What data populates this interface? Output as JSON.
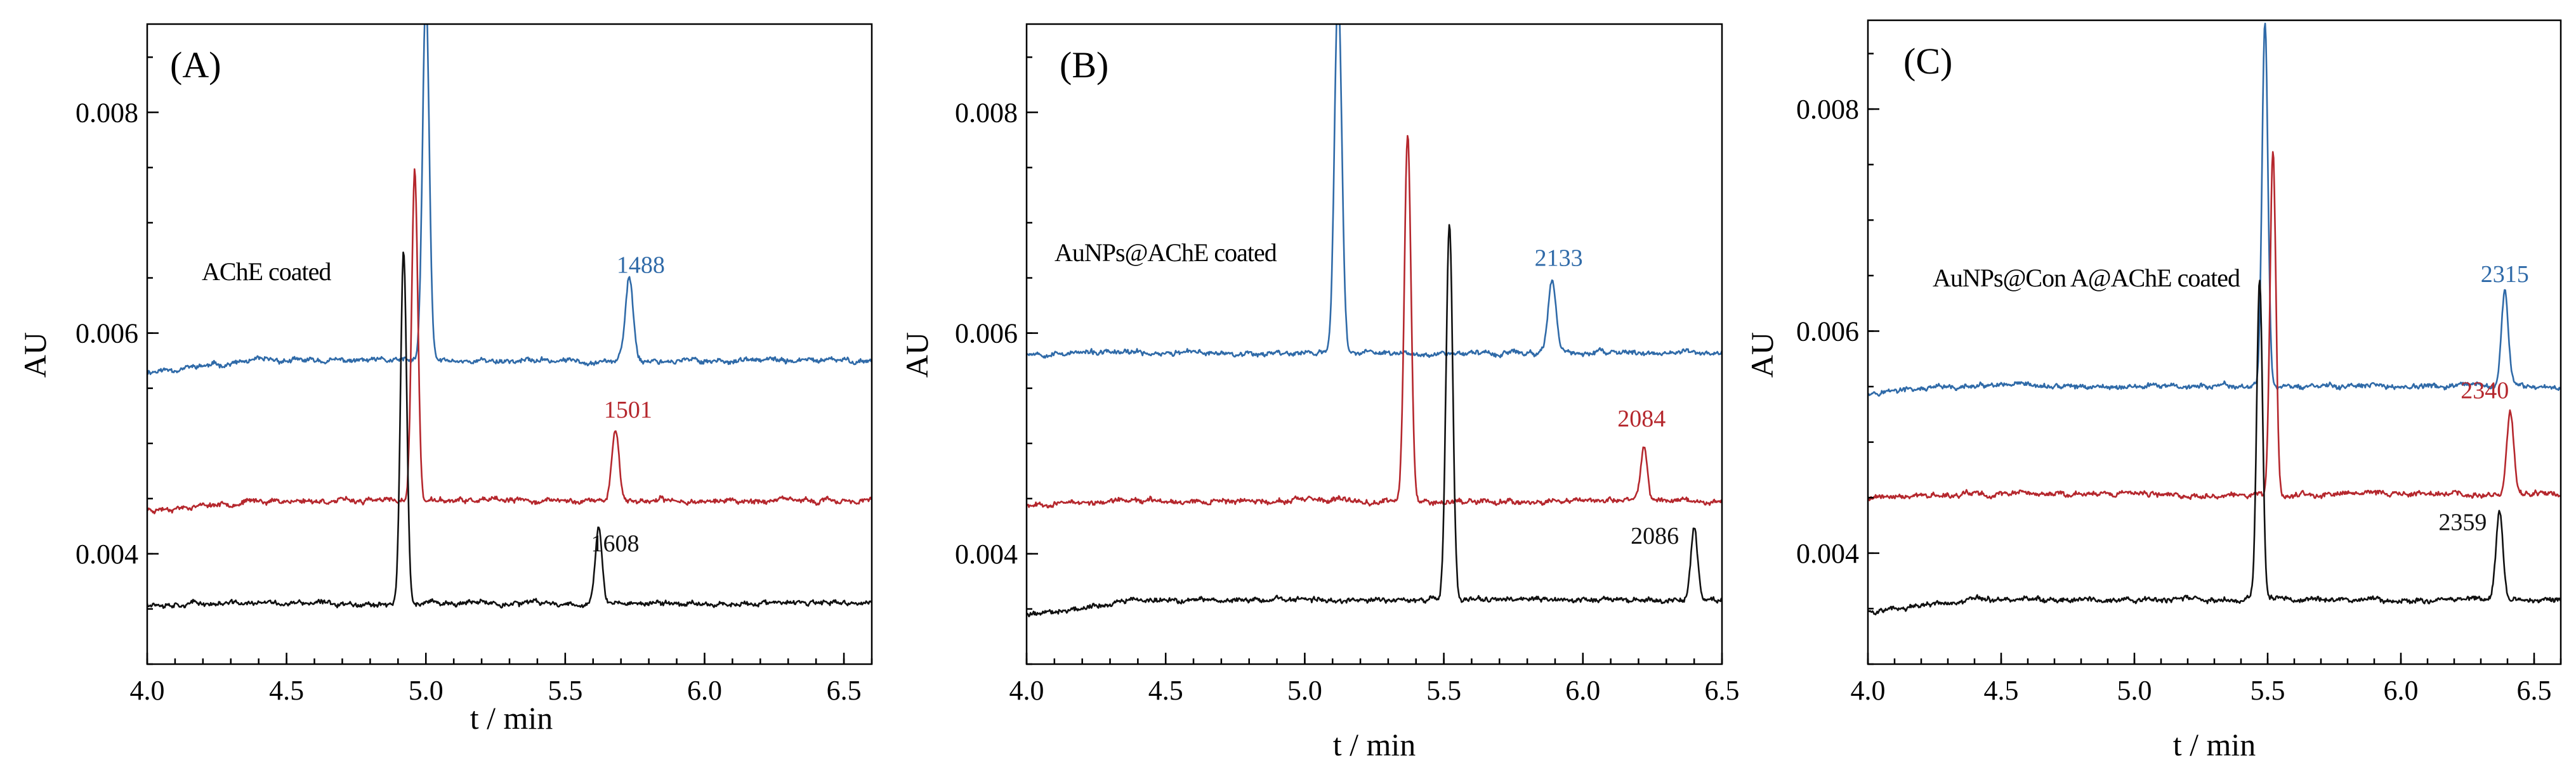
{
  "colors": {
    "blue": "#2f6aa8",
    "red": "#b5272d",
    "black": "#111111"
  },
  "chart_data": [
    {
      "type": "line",
      "panel_label": "(A)",
      "annotation": "AChE coated",
      "xlabel": "t / min",
      "ylabel": "AU",
      "xlim": [
        4.0,
        6.6
      ],
      "ylim": [
        0.003,
        0.0088
      ],
      "xticks": [
        "4.0",
        "4.5",
        "5.0",
        "5.5",
        "6.0",
        "6.5"
      ],
      "yticks": [
        "0.004",
        "0.006",
        "0.008"
      ],
      "series": [
        {
          "color": "#2f6aa8",
          "baseline": 0.00575,
          "start": 0.00565,
          "seed": 11,
          "peaks": [
            {
              "x": 5.0,
              "height": 0.0033,
              "width": 0.012
            },
            {
              "x": 5.73,
              "height": 0.00075,
              "width": 0.014
            }
          ],
          "peak_label": {
            "x": 5.73,
            "text": "1488"
          }
        },
        {
          "color": "#b5272d",
          "baseline": 0.00448,
          "start": 0.0044,
          "seed": 23,
          "peaks": [
            {
              "x": 4.96,
              "height": 0.003,
              "width": 0.011
            },
            {
              "x": 5.68,
              "height": 0.00065,
              "width": 0.013
            }
          ],
          "peak_label": {
            "x": 5.68,
            "text": "1501"
          }
        },
        {
          "color": "#111111",
          "baseline": 0.00355,
          "start": 0.00355,
          "seed": 37,
          "peaks": [
            {
              "x": 4.92,
              "height": 0.0032,
              "width": 0.011
            },
            {
              "x": 5.62,
              "height": 0.00068,
              "width": 0.012
            }
          ],
          "peak_label": {
            "x": 5.62,
            "text": "1608"
          }
        }
      ]
    },
    {
      "type": "line",
      "panel_label": "(B)",
      "annotation": "AuNPs@AChE coated",
      "xlabel": "t / min",
      "ylabel": "AU",
      "xlim": [
        4.0,
        6.5
      ],
      "ylim": [
        0.003,
        0.0088
      ],
      "xticks": [
        "4.0",
        "4.5",
        "5.0",
        "5.5",
        "6.0",
        "6.5"
      ],
      "yticks": [
        "0.004",
        "0.006",
        "0.008"
      ],
      "series": [
        {
          "color": "#2f6aa8",
          "baseline": 0.00582,
          "start": 0.00582,
          "seed": 53,
          "peaks": [
            {
              "x": 5.12,
              "height": 0.0033,
              "width": 0.013
            },
            {
              "x": 5.89,
              "height": 0.00065,
              "width": 0.014
            }
          ],
          "peak_label": {
            "x": 5.89,
            "text": "2133"
          }
        },
        {
          "color": "#b5272d",
          "baseline": 0.00448,
          "start": 0.00445,
          "seed": 67,
          "peaks": [
            {
              "x": 5.37,
              "height": 0.0033,
              "width": 0.012
            },
            {
              "x": 6.22,
              "height": 0.0005,
              "width": 0.012
            }
          ],
          "peak_label": {
            "x": 6.22,
            "text": "2084"
          }
        },
        {
          "color": "#111111",
          "baseline": 0.00358,
          "start": 0.00345,
          "seed": 79,
          "peaks": [
            {
              "x": 5.52,
              "height": 0.0034,
              "width": 0.012
            },
            {
              "x": 6.4,
              "height": 0.00065,
              "width": 0.012
            }
          ],
          "peak_label": {
            "x": 6.4,
            "text": "2086"
          }
        }
      ]
    },
    {
      "type": "line",
      "panel_label": "(C)",
      "annotation": "AuNPs@Con A@AChE coated",
      "xlabel": "t / min",
      "ylabel": "AU",
      "xlim": [
        4.0,
        6.6
      ],
      "ylim": [
        0.003,
        0.0088
      ],
      "xticks": [
        "4.0",
        "4.5",
        "5.0",
        "5.5",
        "6.0",
        "6.5"
      ],
      "yticks": [
        "0.004",
        "0.006",
        "0.008"
      ],
      "series": [
        {
          "color": "#2f6aa8",
          "baseline": 0.0055,
          "start": 0.00545,
          "seed": 97,
          "peaks": [
            {
              "x": 5.49,
              "height": 0.0033,
              "width": 0.011
            },
            {
              "x": 6.39,
              "height": 0.00085,
              "width": 0.013
            }
          ],
          "peak_label": {
            "x": 6.39,
            "text": "2315"
          }
        },
        {
          "color": "#b5272d",
          "baseline": 0.00453,
          "start": 0.0045,
          "seed": 109,
          "peaks": [
            {
              "x": 5.52,
              "height": 0.0031,
              "width": 0.011
            },
            {
              "x": 6.41,
              "height": 0.00075,
              "width": 0.013
            }
          ],
          "peak_label": {
            "x": 6.41,
            "text": "2340"
          }
        },
        {
          "color": "#111111",
          "baseline": 0.00358,
          "start": 0.00348,
          "seed": 127,
          "peaks": [
            {
              "x": 5.47,
              "height": 0.0029,
              "width": 0.011
            },
            {
              "x": 6.37,
              "height": 0.0008,
              "width": 0.013
            }
          ],
          "peak_label": {
            "x": 6.37,
            "text": "2359"
          }
        }
      ]
    }
  ]
}
